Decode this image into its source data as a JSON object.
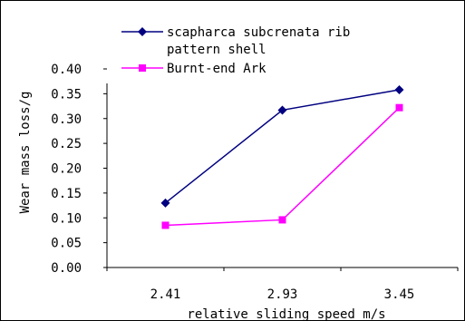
{
  "chart_data": {
    "type": "line",
    "xlabel": "relative sliding speed m/s",
    "ylabel": "Wear mass loss/g",
    "categories": [
      "2.41",
      "2.93",
      "3.45"
    ],
    "ylim": [
      0,
      0.4
    ],
    "yticks": [
      "0.00",
      "0.05",
      "0.10",
      "0.15",
      "0.20",
      "0.25",
      "0.30",
      "0.35",
      "0.40"
    ],
    "grid": false,
    "legend_position": "top",
    "series": [
      {
        "name": "scapharca subcrenata rib pattern shell",
        "legend_lines": [
          "scapharca subcrenata rib",
          "pattern shell"
        ],
        "values": [
          0.13,
          0.317,
          0.358
        ],
        "color": "#000080",
        "marker": "diamond"
      },
      {
        "name": "Burnt-end Ark",
        "legend_lines": [
          "Burnt-end Ark"
        ],
        "values": [
          0.085,
          0.096,
          0.322
        ],
        "color": "#ff00ff",
        "marker": "square"
      }
    ]
  }
}
